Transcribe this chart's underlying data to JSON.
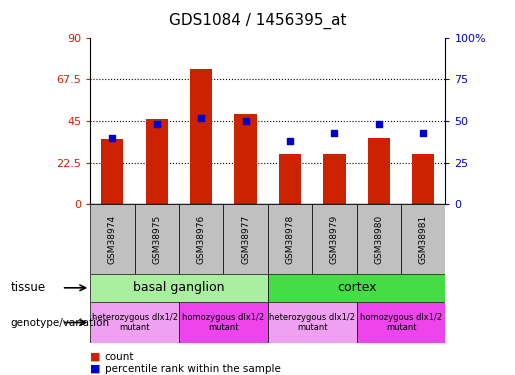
{
  "title": "GDS1084 / 1456395_at",
  "samples": [
    "GSM38974",
    "GSM38975",
    "GSM38976",
    "GSM38977",
    "GSM38978",
    "GSM38979",
    "GSM38980",
    "GSM38981"
  ],
  "counts": [
    35,
    46,
    73,
    49,
    27,
    27,
    36,
    27
  ],
  "percentiles": [
    40,
    48,
    52,
    50,
    38,
    43,
    48,
    43
  ],
  "ylim_left": [
    0,
    90
  ],
  "ylim_right": [
    0,
    100
  ],
  "yticks_left": [
    0,
    22.5,
    45,
    67.5,
    90
  ],
  "yticks_right": [
    0,
    25,
    50,
    75,
    100
  ],
  "ytick_right_labels": [
    "0",
    "25",
    "50",
    "75",
    "100%"
  ],
  "bar_color": "#cc2200",
  "scatter_color": "#0000cc",
  "tissue_groups": [
    {
      "label": "basal ganglion",
      "start": 0,
      "end": 4,
      "color": "#aaeea0"
    },
    {
      "label": "cortex",
      "start": 4,
      "end": 8,
      "color": "#44dd44"
    }
  ],
  "genotype_groups": [
    {
      "label": "heterozygous dlx1/2\nmutant",
      "start": 0,
      "end": 2,
      "color": "#f0a0f0"
    },
    {
      "label": "homozygous dlx1/2\nmutant",
      "start": 2,
      "end": 4,
      "color": "#ee44ee"
    },
    {
      "label": "heterozygous dlx1/2\nmutant",
      "start": 4,
      "end": 6,
      "color": "#f0a0f0"
    },
    {
      "label": "homozygous dlx1/2\nmutant",
      "start": 6,
      "end": 8,
      "color": "#ee44ee"
    }
  ],
  "bar_width": 0.5,
  "sample_label_color": "#c0c0c0",
  "grid_color": "black",
  "grid_linestyle": ":",
  "grid_linewidth": 0.8
}
